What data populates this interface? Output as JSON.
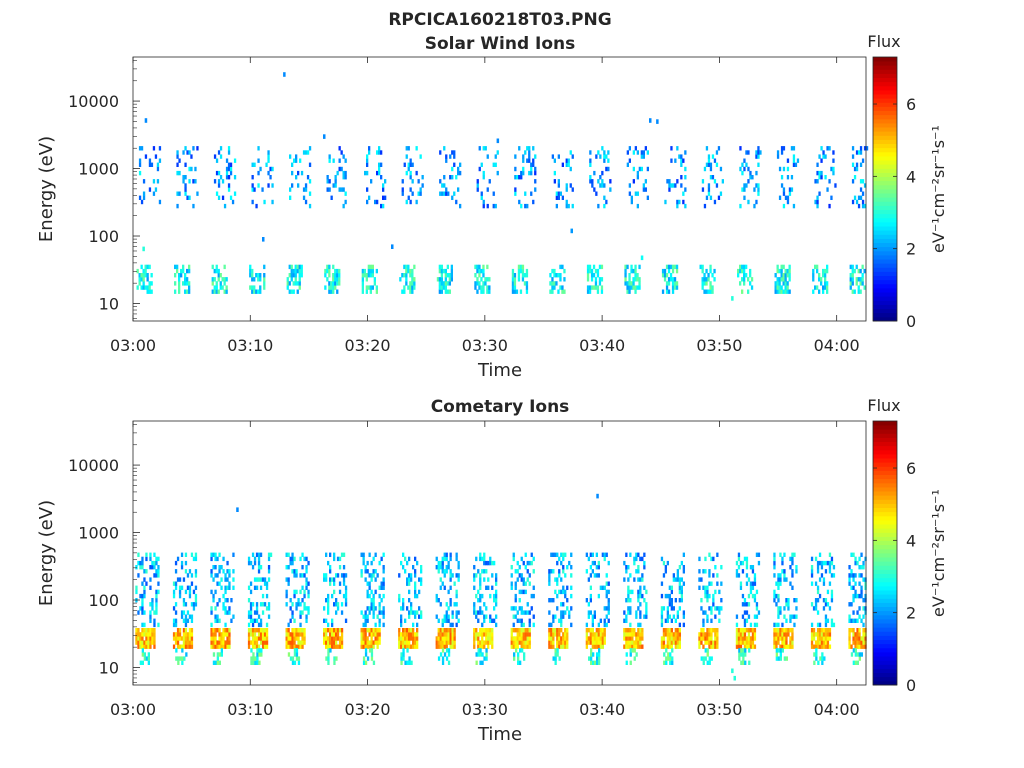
{
  "figure_title": "RPCICA160218T03.PNG",
  "colorbar": {
    "label": "Flux",
    "units_text": "eV⁻¹cm⁻²sr⁻¹s⁻¹",
    "ticks": [
      "0",
      "2",
      "4",
      "6"
    ],
    "range": [
      0,
      7.3
    ],
    "colormap": "jet"
  },
  "chart_data": [
    {
      "type": "heatmap",
      "title": "Solar Wind Ions",
      "xlabel": "Time",
      "ylabel": "Energy (eV)",
      "xticks": [
        "03:00",
        "03:10",
        "03:20",
        "03:30",
        "03:40",
        "03:50",
        "04:00"
      ],
      "xlim_minutes": [
        0,
        62.5
      ],
      "yticks": [
        "10",
        "100",
        "1000",
        "10000"
      ],
      "ylim": [
        5.5,
        45000
      ],
      "yscale": "log",
      "bands": [
        {
          "energy": [
            14,
            36
          ],
          "flux": 2.8,
          "step": 3.2,
          "start": 0.3,
          "width": 1.2,
          "density": 0.55
        },
        {
          "energy": [
            260,
            2000
          ],
          "flux": 2.0,
          "step": 3.2,
          "start": 0.5,
          "width": 1.8,
          "density": 0.18
        }
      ],
      "points": [
        {
          "t": 1.0,
          "e": 5200,
          "flux": 1.9
        },
        {
          "t": 12.8,
          "e": 25000,
          "flux": 1.9
        },
        {
          "t": 44.0,
          "e": 5200,
          "flux": 1.9
        },
        {
          "t": 44.6,
          "e": 5000,
          "flux": 1.9
        },
        {
          "t": 16.2,
          "e": 3000,
          "flux": 1.9
        },
        {
          "t": 31.0,
          "e": 2600,
          "flux": 1.9
        },
        {
          "t": 37.3,
          "e": 120,
          "flux": 2.0
        },
        {
          "t": 0.8,
          "e": 65,
          "flux": 3.0
        },
        {
          "t": 11.0,
          "e": 90,
          "flux": 1.9
        },
        {
          "t": 22.0,
          "e": 70,
          "flux": 1.9
        },
        {
          "t": 43.3,
          "e": 48,
          "flux": 2.8
        },
        {
          "t": 51.0,
          "e": 12,
          "flux": 3.0
        }
      ]
    },
    {
      "type": "heatmap",
      "title": "Cometary Ions",
      "xlabel": "Time",
      "ylabel": "Energy (eV)",
      "xticks": [
        "03:00",
        "03:10",
        "03:20",
        "03:30",
        "03:40",
        "03:50",
        "04:00"
      ],
      "xlim_minutes": [
        0,
        62.5
      ],
      "yticks": [
        "10",
        "100",
        "1000",
        "10000"
      ],
      "ylim": [
        5.5,
        45000
      ],
      "yscale": "log",
      "bands": [
        {
          "energy": [
            19,
            36
          ],
          "flux": 5.0,
          "step": 3.2,
          "start": 0.2,
          "width": 1.6,
          "density": 0.9
        },
        {
          "energy": [
            11,
            19
          ],
          "flux": 3.0,
          "step": 3.2,
          "start": 0.4,
          "width": 1.0,
          "density": 0.5
        },
        {
          "energy": [
            40,
            500
          ],
          "flux": 2.3,
          "step": 3.2,
          "start": 0.2,
          "width": 2.0,
          "density": 0.3
        }
      ],
      "points": [
        {
          "t": 8.8,
          "e": 2200,
          "flux": 1.9
        },
        {
          "t": 39.5,
          "e": 3500,
          "flux": 1.9
        },
        {
          "t": 51.2,
          "e": 7,
          "flux": 3.0
        },
        {
          "t": 51.0,
          "e": 9,
          "flux": 3.0
        }
      ]
    }
  ]
}
